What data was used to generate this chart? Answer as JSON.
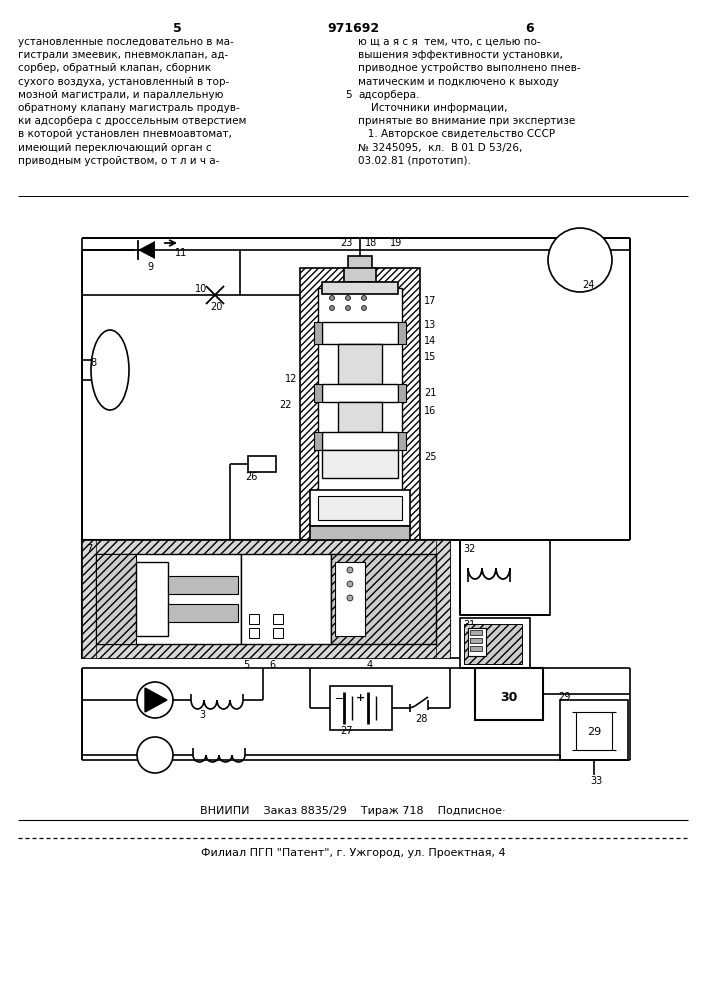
{
  "bg": "#ffffff",
  "top_left": "5",
  "top_center": "971692",
  "top_right": "6",
  "col_left": [
    "установленные последовательно в ма-",
    "гистрали змеевик, пневмоклапан, ад-",
    "сорбер, обратный клапан, сборник",
    "сухого воздуха, установленный в тор-",
    "мозной магистрали, и параллельную",
    "обратному клапану магистраль продув-",
    "ки адсорбера с дроссельным отверстием",
    "в которой установлен пневмоавтомат,",
    "имеющий переключающий орган с",
    "приводным устройством, о т л и ч а-"
  ],
  "col_right": [
    "ю щ а я с я  тем, что, с целью по-",
    "вышения эффективности установки,",
    "приводное устройство выполнено пнев-",
    "матическим и подключено к выходу",
    "адсорбера.",
    "    Источники информации,",
    "принятые во внимание при экспертизе",
    "   1. Авторское свидетельство СССР",
    "№ 3245095,  кл.  В 01 D 53/26,",
    "03.02.81 (прототип)."
  ],
  "line_num": "5",
  "bottom1": "ВНИИПИ    Заказ 8835/29    Тираж 718    Подписное·",
  "bottom2": "Филиал ПГП \"Патент\", г. Ужгород, ул. Проектная, 4"
}
